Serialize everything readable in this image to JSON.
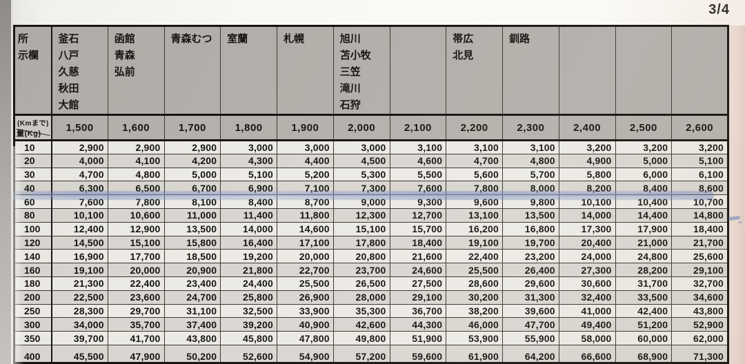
{
  "page_indicator": "3/4",
  "colors": {
    "header_bg": "#b2afaa",
    "row_light": "#eceae5",
    "row_dark": "#d9d6d1",
    "highlighter_blue": "#6c82b9",
    "border_black": "#151310"
  },
  "table": {
    "corner_header_label": "所\n示欄",
    "corner_distance_label": "(Kmまで)",
    "corner_weight_label": "量(Kg)",
    "city_columns": [
      "釜石\n八戸\n久慈\n秋田\n大館",
      "函館\n青森\n弘前",
      "青森むつ",
      "室蘭",
      "札幌",
      "旭川\n苫小牧\n三笠\n滝川\n石狩",
      "",
      "帯広\n北見",
      "釧路",
      "",
      "",
      ""
    ],
    "distances": [
      "1,500",
      "1,600",
      "1,700",
      "1,800",
      "1,900",
      "2,000",
      "2,100",
      "2,200",
      "2,300",
      "2,400",
      "2,500",
      "2,600"
    ],
    "rows": [
      {
        "weight": "10",
        "values": [
          "2,900",
          "2,900",
          "2,900",
          "3,000",
          "3,000",
          "3,000",
          "3,100",
          "3,100",
          "3,100",
          "3,200",
          "3,200",
          "3,200"
        ],
        "highlighted": false,
        "partial": false
      },
      {
        "weight": "20",
        "values": [
          "4,000",
          "4,100",
          "4,200",
          "4,300",
          "4,400",
          "4,500",
          "4,600",
          "4,700",
          "4,800",
          "4,900",
          "5,000",
          "5,100"
        ],
        "highlighted": false,
        "partial": false
      },
      {
        "weight": "30",
        "values": [
          "4,700",
          "4,800",
          "5,000",
          "5,100",
          "5,200",
          "5,300",
          "5,500",
          "5,600",
          "5,700",
          "5,800",
          "6,000",
          "6,100"
        ],
        "highlighted": false,
        "partial": false
      },
      {
        "weight": "40",
        "values": [
          "6,300",
          "6,500",
          "6,700",
          "6,900",
          "7,100",
          "7,300",
          "7,600",
          "7,800",
          "8,000",
          "8,200",
          "8,400",
          "8,600"
        ],
        "highlighted": false,
        "partial": false
      },
      {
        "weight": "60",
        "values": [
          "7,600",
          "7,800",
          "8,100",
          "8,400",
          "8,700",
          "9,000",
          "9,300",
          "9,600",
          "9,800",
          "10,100",
          "10,400",
          "10,700"
        ],
        "highlighted": false,
        "partial": false
      },
      {
        "weight": "80",
        "values": [
          "10,100",
          "10,600",
          "11,000",
          "11,400",
          "11,800",
          "12,300",
          "12,700",
          "13,100",
          "13,500",
          "14,000",
          "14,400",
          "14,800"
        ],
        "highlighted": true,
        "partial": false
      },
      {
        "weight": "100",
        "values": [
          "12,400",
          "12,900",
          "13,500",
          "14,000",
          "14,600",
          "15,100",
          "15,700",
          "16,200",
          "16,800",
          "17,300",
          "17,900",
          "18,400"
        ],
        "highlighted": false,
        "partial": false
      },
      {
        "weight": "120",
        "values": [
          "14,500",
          "15,100",
          "15,800",
          "16,400",
          "17,100",
          "17,800",
          "18,400",
          "19,100",
          "19,700",
          "20,400",
          "21,000",
          "21,700"
        ],
        "highlighted": false,
        "partial": false
      },
      {
        "weight": "140",
        "values": [
          "16,900",
          "17,700",
          "18,500",
          "19,200",
          "20,000",
          "20,800",
          "21,600",
          "22,400",
          "23,200",
          "24,000",
          "24,800",
          "25,600"
        ],
        "highlighted": false,
        "partial": false
      },
      {
        "weight": "160",
        "values": [
          "19,100",
          "20,000",
          "20,900",
          "21,800",
          "22,700",
          "23,700",
          "24,600",
          "25,500",
          "26,400",
          "27,300",
          "28,200",
          "29,100"
        ],
        "highlighted": false,
        "partial": false
      },
      {
        "weight": "180",
        "values": [
          "21,300",
          "22,400",
          "23,400",
          "24,400",
          "25,500",
          "26,500",
          "27,500",
          "28,600",
          "29,600",
          "30,600",
          "31,700",
          "32,700"
        ],
        "highlighted": false,
        "partial": false
      },
      {
        "weight": "200",
        "values": [
          "22,500",
          "23,600",
          "24,700",
          "25,800",
          "26,900",
          "28,000",
          "29,100",
          "30,200",
          "31,300",
          "32,400",
          "33,500",
          "34,600"
        ],
        "highlighted": false,
        "partial": false
      },
      {
        "weight": "250",
        "values": [
          "28,300",
          "29,700",
          "31,100",
          "32,500",
          "33,900",
          "35,300",
          "36,700",
          "38,200",
          "39,600",
          "41,000",
          "42,400",
          "43,800"
        ],
        "highlighted": false,
        "partial": false
      },
      {
        "weight": "300",
        "values": [
          "34,000",
          "35,700",
          "37,400",
          "39,200",
          "40,900",
          "42,600",
          "44,300",
          "46,000",
          "47,700",
          "49,400",
          "51,200",
          "52,900"
        ],
        "highlighted": false,
        "partial": false
      },
      {
        "weight": "350",
        "values": [
          "39,700",
          "41,700",
          "43,800",
          "45,800",
          "47,800",
          "49,800",
          "51,900",
          "53,900",
          "55,900",
          "58,000",
          "60,000",
          "62,000"
        ],
        "highlighted": false,
        "partial": false
      },
      {
        "weight": "400",
        "values": [
          "45,500",
          "47,900",
          "50,200",
          "52,600",
          "54,900",
          "57,200",
          "59,600",
          "61,900",
          "64,200",
          "66,600",
          "68,900",
          "71,300"
        ],
        "highlighted": false,
        "partial": true
      }
    ]
  }
}
